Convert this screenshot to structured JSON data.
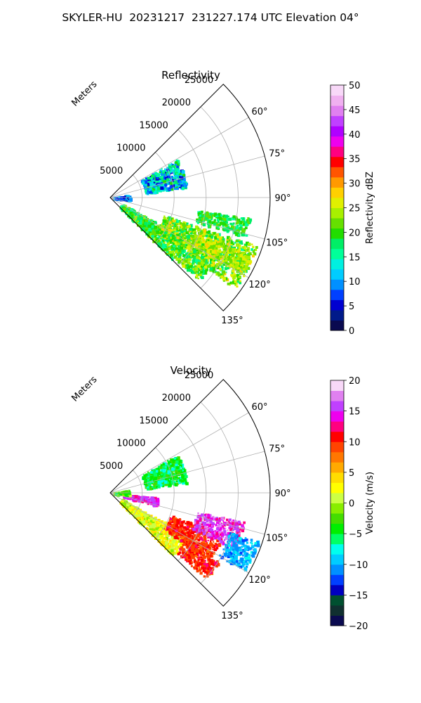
{
  "figure": {
    "title": "SKYLER-HU  20231217  231227.174 UTC Elevation 04°"
  },
  "chart_data": [
    {
      "type": "polar-ppi",
      "title": "Reflectivity",
      "variable": "reflectivity",
      "range_axis": {
        "label": "Meters",
        "ticks": [
          5000,
          10000,
          15000,
          20000,
          25000
        ],
        "max": 25000
      },
      "azimuth_axis": {
        "range_deg": [
          45,
          135
        ],
        "ticks": [
          "60°",
          "75°",
          "90°",
          "105°",
          "120°",
          "135°"
        ]
      },
      "grid": true,
      "colorbar": {
        "label": "Reflectivity dBZ",
        "min": 0,
        "max": 50,
        "ticks": [
          "0",
          "5",
          "10",
          "15",
          "20",
          "25",
          "30",
          "35",
          "40",
          "45",
          "50"
        ],
        "colors": [
          "#0a0a50",
          "#001a8a",
          "#0000d0",
          "#0040ff",
          "#0090ff",
          "#00ccff",
          "#00f0e0",
          "#00ff99",
          "#00ee66",
          "#22dd00",
          "#66e000",
          "#a8f000",
          "#e0f000",
          "#ffd000",
          "#ff9900",
          "#ff5500",
          "#ff0000",
          "#ff0080",
          "#ee00ee",
          "#b000ff",
          "#c040ff",
          "#e080f0",
          "#f0b0f0",
          "#f8d8f8"
        ]
      },
      "echo_regions": [
        {
          "desc": "main band",
          "dominant": "green",
          "value_range": [
            15,
            28
          ]
        },
        {
          "desc": "upper cluster",
          "dominant": "cyan-green",
          "value_range": [
            5,
            20
          ]
        },
        {
          "desc": "core",
          "dominant": "yellow",
          "value_range": [
            22,
            28
          ]
        }
      ]
    },
    {
      "type": "polar-ppi",
      "title": "Velocity",
      "variable": "velocity",
      "range_axis": {
        "label": "Meters",
        "ticks": [
          5000,
          10000,
          15000,
          20000,
          25000
        ],
        "max": 25000
      },
      "azimuth_axis": {
        "range_deg": [
          45,
          135
        ],
        "ticks": [
          "60°",
          "75°",
          "90°",
          "105°",
          "120°",
          "135°"
        ]
      },
      "grid": true,
      "colorbar": {
        "label": "Velocity (m/s)",
        "min": -20,
        "max": 20,
        "ticks": [
          "−20",
          "−15",
          "−10",
          "−5",
          "0",
          "5",
          "10",
          "15",
          "20"
        ],
        "colors": [
          "#0a0a50",
          "#103030",
          "#005030",
          "#0000c0",
          "#0040ff",
          "#0090ff",
          "#00ccff",
          "#00ffee",
          "#00ff66",
          "#00ee00",
          "#44dd00",
          "#88ee00",
          "#ccff44",
          "#ffff00",
          "#ffdd00",
          "#ffaa00",
          "#ff7700",
          "#ff4400",
          "#ff0000",
          "#ff0080",
          "#ee00ee",
          "#c040ff",
          "#e080f0",
          "#f8d8f8"
        ]
      },
      "echo_regions": [
        {
          "desc": "inbound near",
          "dominant": "yellow-orange",
          "value_range": [
            0,
            5
          ]
        },
        {
          "desc": "outbound mid",
          "dominant": "red",
          "value_range": [
            8,
            12
          ]
        },
        {
          "desc": "far outbound",
          "dominant": "magenta",
          "value_range": [
            13,
            18
          ]
        },
        {
          "desc": "far inbound",
          "dominant": "cyan",
          "value_range": [
            -12,
            -8
          ]
        },
        {
          "desc": "upper cluster",
          "dominant": "green",
          "value_range": [
            -8,
            -3
          ]
        }
      ]
    }
  ]
}
